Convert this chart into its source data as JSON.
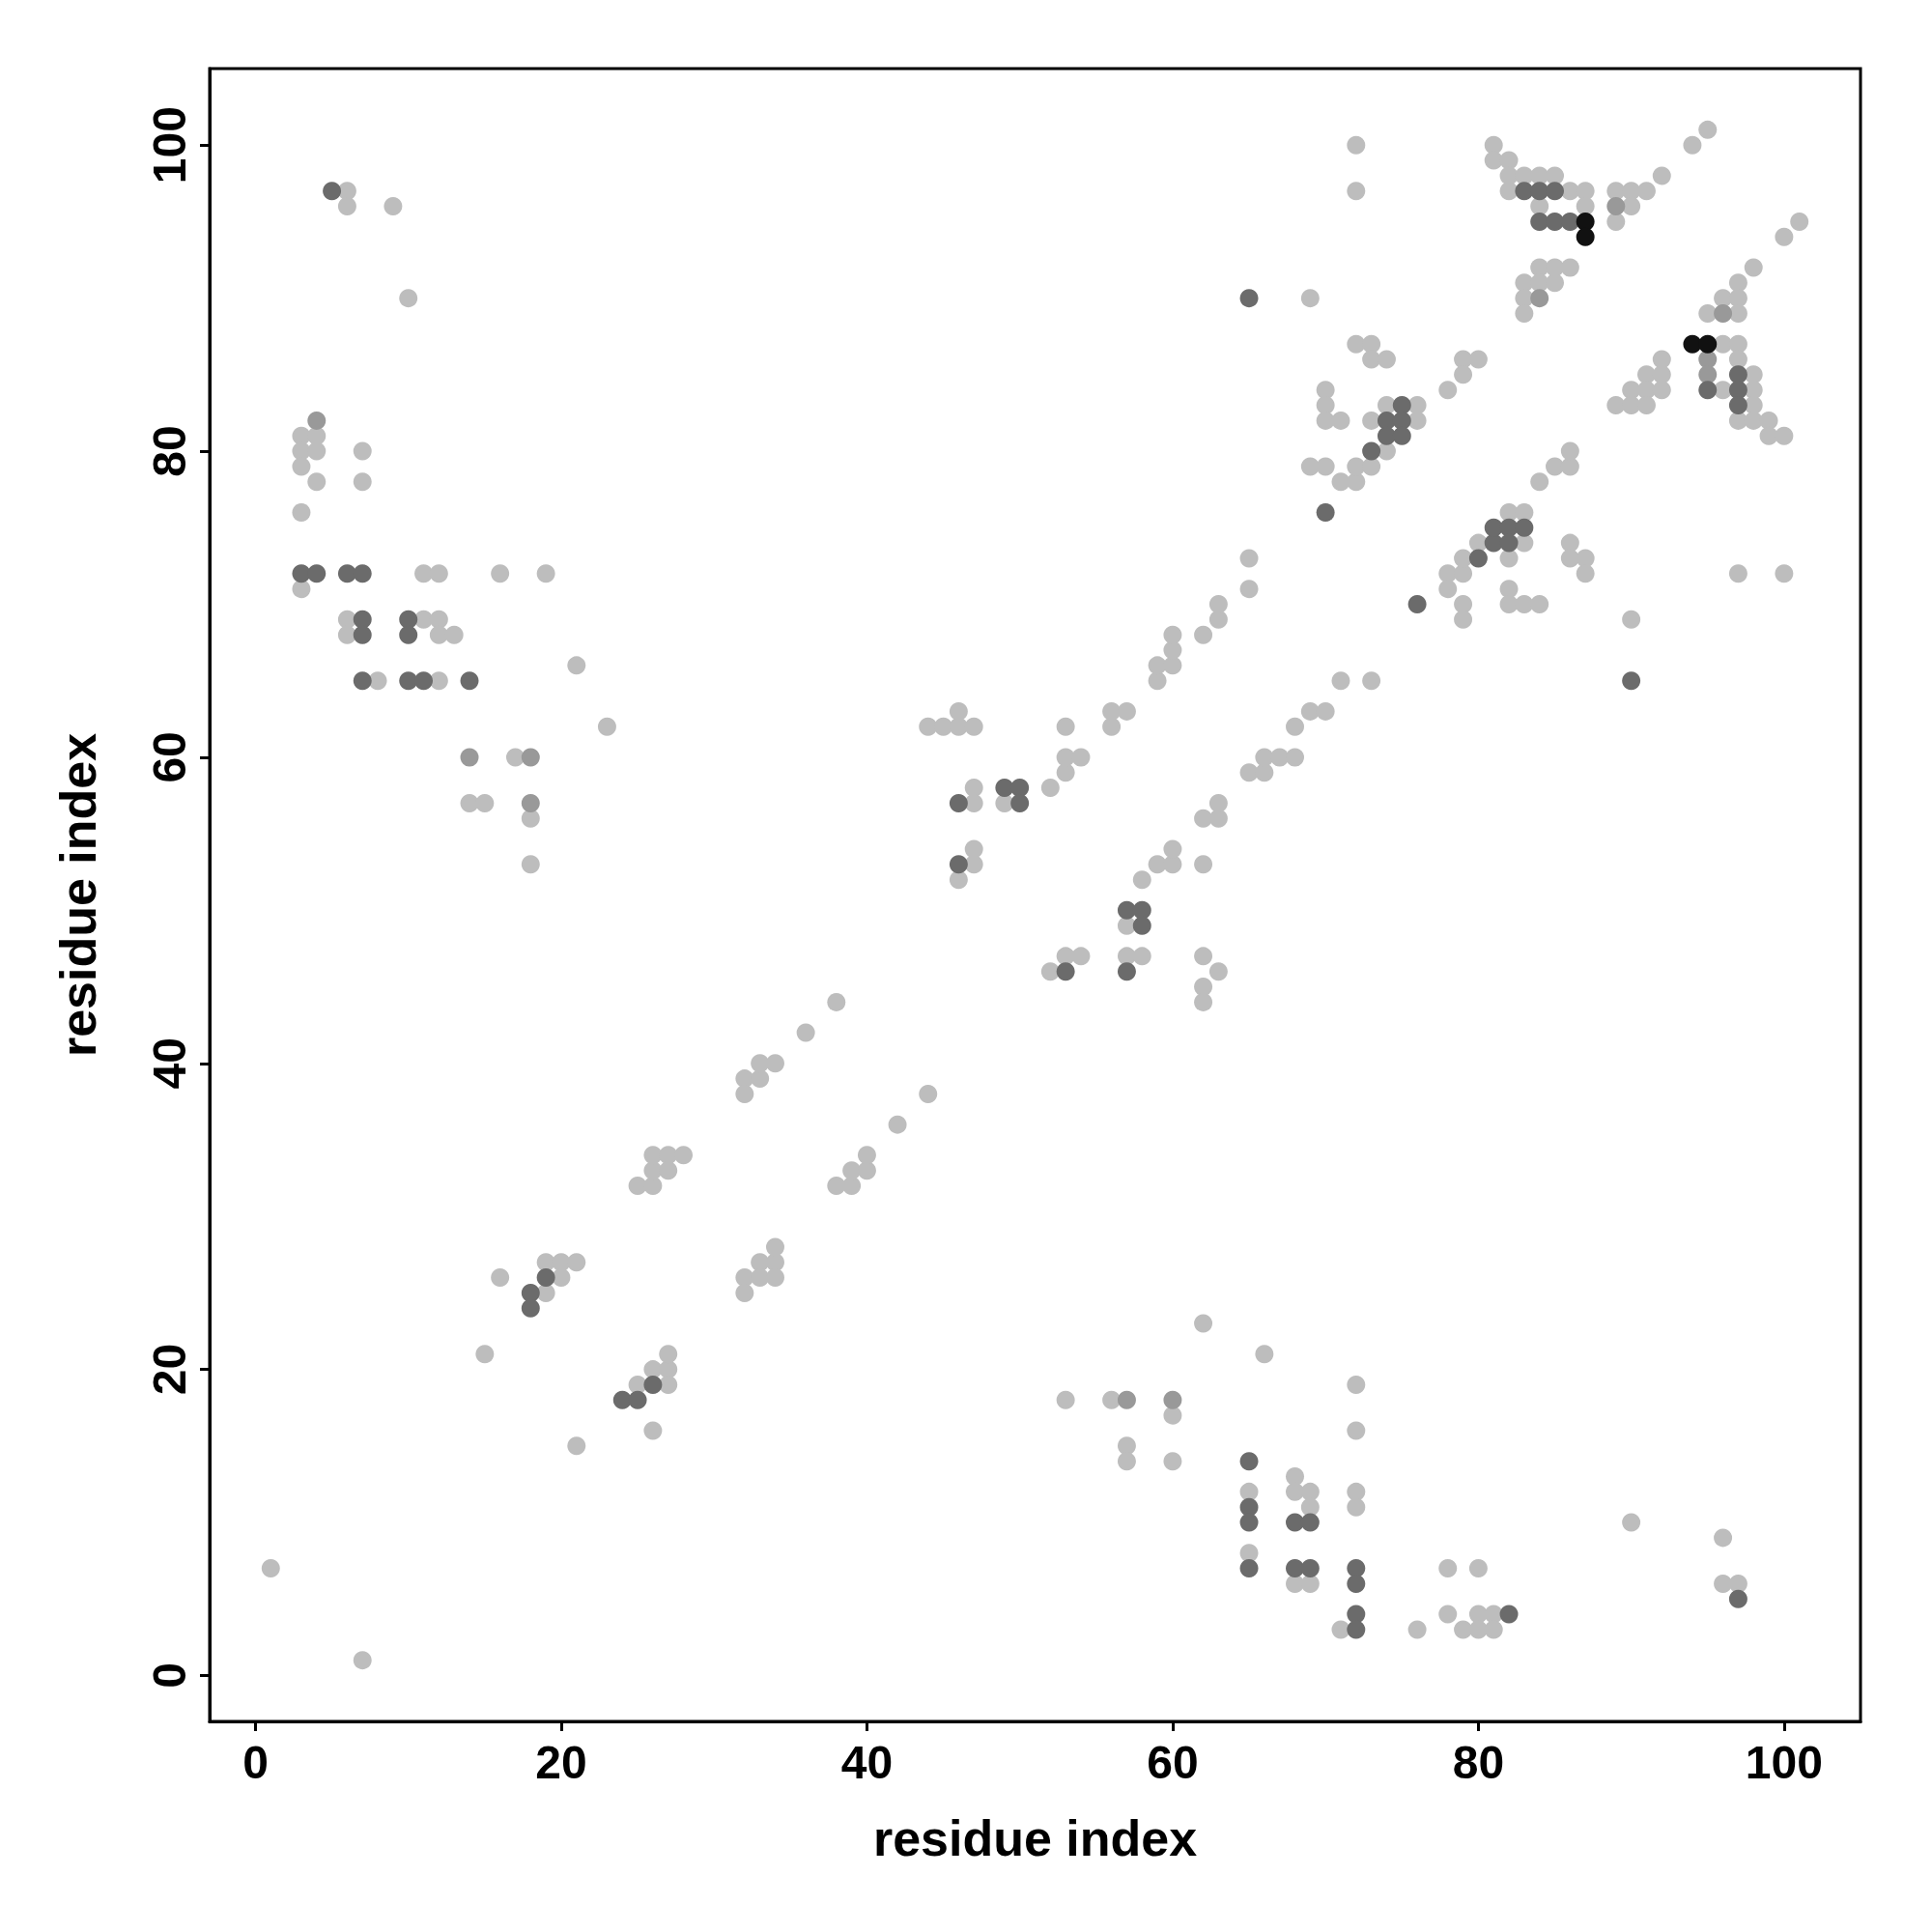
{
  "chart_data": {
    "type": "scatter",
    "xlabel": "residue index",
    "ylabel": "residue index",
    "xlim": [
      -3,
      105
    ],
    "ylim": [
      -3,
      105
    ],
    "xticks": [
      0,
      20,
      40,
      60,
      80,
      100
    ],
    "yticks": [
      0,
      20,
      40,
      60,
      80,
      100
    ],
    "grid": false,
    "marker": "circle",
    "series": [
      {
        "color": "#bdbdbd",
        "x": [
          6,
          6,
          9,
          10,
          3,
          4,
          3,
          4,
          3,
          4,
          7,
          7,
          3,
          3,
          6,
          6,
          8,
          11,
          12,
          11,
          12,
          12,
          13,
          12,
          16,
          19,
          21,
          23,
          17,
          14,
          15,
          18,
          18,
          1,
          7,
          15,
          16,
          19,
          19,
          20,
          20,
          21,
          21,
          25,
          26,
          27,
          27,
          27,
          26,
          25,
          26,
          26,
          26,
          27,
          27,
          28,
          32,
          32,
          33,
          33,
          34,
          36,
          38,
          32,
          32,
          33,
          33,
          34,
          34,
          34,
          38,
          39,
          39,
          40,
          40,
          42,
          44,
          44,
          45,
          46,
          46,
          47,
          47,
          47,
          46,
          47,
          47,
          49,
          52,
          53,
          53,
          54,
          53,
          56,
          56,
          57,
          52,
          53,
          54,
          57,
          58,
          59,
          60,
          60,
          57,
          58,
          62,
          62,
          62,
          63,
          62,
          62,
          63,
          63,
          65,
          66,
          66,
          67,
          68,
          68,
          69,
          70,
          71,
          73,
          59,
          59,
          60,
          60,
          60,
          62,
          63,
          63,
          65,
          65,
          69,
          62,
          66,
          53,
          56,
          57,
          57,
          60,
          60,
          65,
          65,
          68,
          68,
          69,
          69,
          68,
          69,
          72,
          72,
          72,
          72,
          71,
          76,
          78,
          78,
          79,
          80,
          80,
          80,
          81,
          81,
          90,
          96,
          96,
          97,
          90,
          97,
          100,
          70,
          70,
          70,
          71,
          69,
          70,
          71,
          72,
          72,
          73,
          72,
          73,
          73,
          74,
          73,
          74,
          74,
          76,
          76,
          72,
          72,
          78,
          79,
          79,
          80,
          78,
          78,
          79,
          79,
          79,
          79,
          80,
          82,
          83,
          83,
          82,
          82,
          82,
          83,
          84,
          84,
          85,
          86,
          86,
          86,
          86,
          87,
          87,
          81,
          81,
          82,
          82,
          82,
          83,
          84,
          84,
          85,
          86,
          87,
          87,
          89,
          89,
          90,
          90,
          91,
          92,
          94,
          95,
          83,
          83,
          83,
          84,
          84,
          85,
          85,
          86,
          89,
          90,
          90,
          91,
          91,
          91,
          92,
          92,
          92,
          95,
          96,
          96,
          96,
          97,
          97,
          97,
          97,
          97,
          97,
          98,
          98,
          98,
          98,
          98,
          99,
          99,
          100,
          100,
          101
        ],
        "values": [
          97,
          96,
          96,
          90,
          81,
          81,
          80,
          80,
          79,
          78,
          80,
          78,
          76,
          71,
          69,
          68,
          65,
          72,
          72,
          69,
          69,
          68,
          68,
          65,
          72,
          72,
          66,
          62,
          60,
          57,
          57,
          56,
          53,
          7,
          1,
          21,
          26,
          27,
          25,
          27,
          26,
          27,
          15,
          19,
          20,
          20,
          21,
          19,
          16,
          32,
          32,
          33,
          34,
          34,
          33,
          34,
          39,
          38,
          39,
          40,
          40,
          42,
          44,
          26,
          25,
          27,
          26,
          27,
          28,
          26,
          32,
          32,
          33,
          33,
          34,
          36,
          38,
          62,
          62,
          62,
          63,
          62,
          58,
          57,
          52,
          54,
          53,
          57,
          58,
          59,
          60,
          60,
          62,
          62,
          63,
          63,
          46,
          47,
          47,
          49,
          52,
          53,
          53,
          54,
          47,
          47,
          47,
          45,
          44,
          46,
          53,
          56,
          56,
          57,
          59,
          59,
          60,
          60,
          60,
          62,
          63,
          63,
          65,
          65,
          65,
          66,
          66,
          67,
          68,
          68,
          69,
          70,
          71,
          73,
          90,
          23,
          21,
          18,
          18,
          15,
          14,
          17,
          14,
          12,
          8,
          13,
          12,
          12,
          11,
          6,
          6,
          19,
          16,
          12,
          11,
          3,
          3,
          7,
          4,
          3,
          7,
          4,
          3,
          4,
          3,
          10,
          9,
          6,
          6,
          69,
          72,
          72,
          84,
          83,
          82,
          82,
          79,
          79,
          78,
          78,
          79,
          79,
          87,
          87,
          86,
          86,
          82,
          83,
          80,
          83,
          82,
          100,
          97,
          84,
          86,
          85,
          86,
          72,
          71,
          72,
          73,
          70,
          69,
          74,
          76,
          76,
          74,
          73,
          71,
          70,
          70,
          70,
          78,
          79,
          79,
          80,
          74,
          73,
          73,
          72,
          100,
          99,
          99,
          98,
          97,
          98,
          98,
          96,
          98,
          97,
          97,
          96,
          97,
          95,
          97,
          96,
          97,
          98,
          100,
          101,
          91,
          90,
          89,
          92,
          91,
          92,
          91,
          92,
          83,
          84,
          83,
          85,
          84,
          83,
          86,
          85,
          84,
          89,
          90,
          87,
          84,
          91,
          90,
          89,
          87,
          86,
          82,
          92,
          85,
          84,
          83,
          82,
          82,
          81,
          81,
          94,
          95
        ]
      },
      {
        "color": "#999999",
        "x": [
          4,
          14,
          18,
          18,
          57,
          60,
          89,
          84,
          95,
          95,
          96
        ],
        "values": [
          82,
          60,
          60,
          57,
          18,
          18,
          96,
          90,
          86,
          85,
          89
        ]
      },
      {
        "color": "#6b6b6b",
        "x": [
          5,
          3,
          4,
          6,
          7,
          7,
          7,
          7,
          10,
          10,
          10,
          11,
          14,
          18,
          18,
          19,
          24,
          25,
          26,
          46,
          46,
          49,
          50,
          50,
          53,
          57,
          58,
          58,
          57,
          65,
          65,
          65,
          65,
          65,
          68,
          69,
          68,
          69,
          72,
          72,
          72,
          72,
          82,
          97,
          70,
          76,
          90,
          73,
          74,
          74,
          75,
          75,
          75,
          80,
          81,
          81,
          82,
          82,
          83,
          83,
          84,
          84,
          85,
          85,
          86,
          95,
          97,
          97,
          97
        ],
        "values": [
          97,
          72,
          72,
          72,
          72,
          69,
          68,
          65,
          69,
          68,
          65,
          65,
          65,
          25,
          24,
          26,
          18,
          18,
          19,
          57,
          53,
          58,
          58,
          57,
          46,
          50,
          50,
          49,
          46,
          90,
          14,
          11,
          10,
          7,
          10,
          10,
          7,
          7,
          7,
          6,
          4,
          3,
          4,
          5,
          76,
          70,
          65,
          80,
          82,
          81,
          83,
          82,
          81,
          73,
          74,
          75,
          75,
          74,
          75,
          97,
          97,
          95,
          97,
          95,
          95,
          84,
          85,
          84,
          83
        ]
      },
      {
        "color": "#111111",
        "x": [
          87,
          87,
          94,
          95
        ],
        "values": [
          95,
          94,
          87,
          87
        ]
      }
    ]
  }
}
